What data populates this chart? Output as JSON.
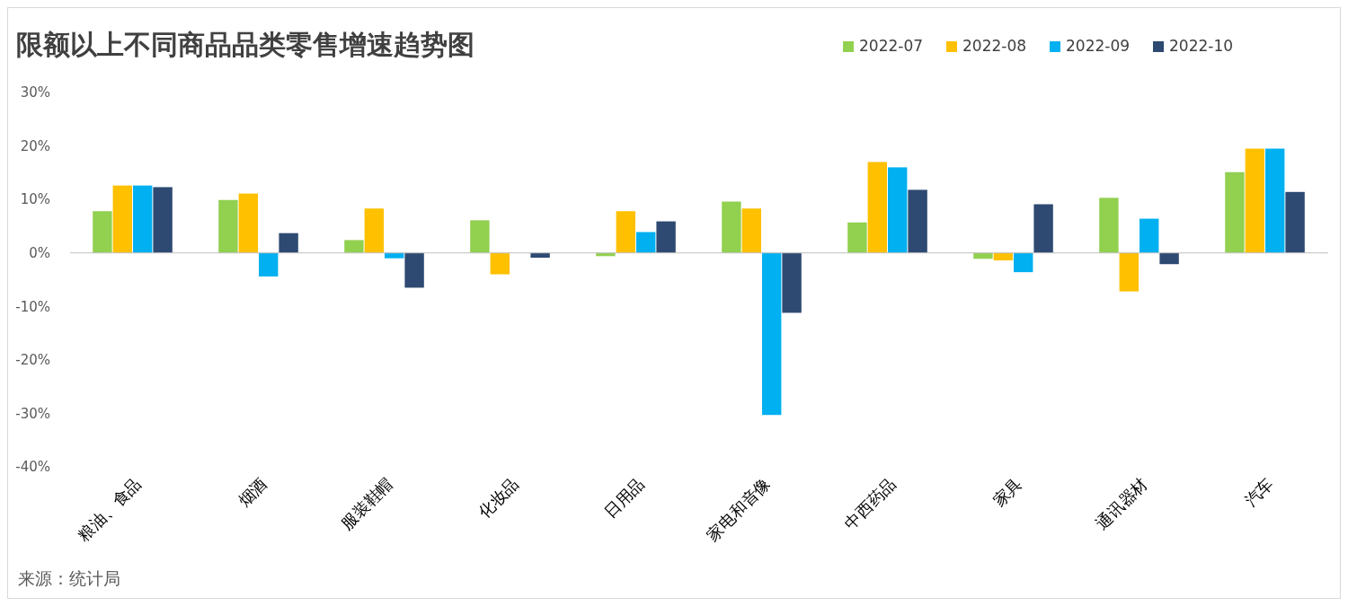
{
  "chart_data": {
    "type": "bar",
    "title": "限额以上不同商品品类零售增速趋势图",
    "categories": [
      "粮油、食品",
      "烟酒",
      "服装鞋帽",
      "化妆品",
      "日用品",
      "家电和音像",
      "中西药品",
      "家具",
      "通讯器材",
      "汽车"
    ],
    "series": [
      {
        "name": "2022-07",
        "color": "#92d050",
        "values": [
          7.8,
          9.9,
          2.4,
          6.1,
          -0.6,
          9.6,
          5.7,
          -1.1,
          10.3,
          15.1
        ]
      },
      {
        "name": "2022-08",
        "color": "#ffc000",
        "values": [
          12.6,
          11.1,
          8.3,
          -4.0,
          7.8,
          8.3,
          17.0,
          -1.4,
          -7.2,
          19.5
        ]
      },
      {
        "name": "2022-09",
        "color": "#00b0f0",
        "values": [
          12.6,
          -4.4,
          -1.0,
          null,
          3.9,
          -30.3,
          16.0,
          -3.6,
          6.4,
          19.5
        ]
      },
      {
        "name": "2022-10",
        "color": "#2e4a72",
        "values": [
          12.3,
          3.7,
          -6.5,
          -0.9,
          5.9,
          -11.2,
          11.8,
          9.1,
          -2.1,
          11.4
        ]
      }
    ],
    "ylim": [
      -40,
      30
    ],
    "yticks": [
      {
        "value": -40,
        "label": "-40%"
      },
      {
        "value": -30,
        "label": "-30%"
      },
      {
        "value": -20,
        "label": "-20%"
      },
      {
        "value": -10,
        "label": "-10%"
      },
      {
        "value": 0,
        "label": "0%"
      },
      {
        "value": 10,
        "label": "10%"
      },
      {
        "value": 20,
        "label": "20%"
      },
      {
        "value": 30,
        "label": "30%"
      }
    ],
    "legend": "top right",
    "annotations": [
      "来源：统计局"
    ]
  }
}
